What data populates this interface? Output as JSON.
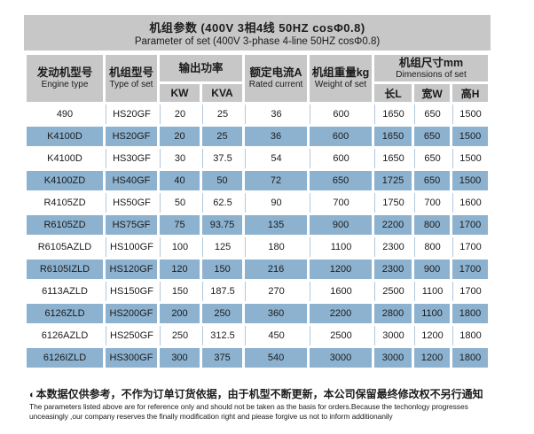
{
  "title": {
    "zh": "机组参数 (400V 3相4线 50HZ cosΦ0.8)",
    "en": "Parameter of set (400V 3-phase 4-line 50HZ cosΦ0.8)"
  },
  "colors": {
    "header_bg": "#c7c7c7",
    "row_blue": "#8cb2d0",
    "divider_blue": "#b0c8dc"
  },
  "table": {
    "header": {
      "engine": {
        "zh": "发动机型号",
        "en": "Engine type"
      },
      "set_type": {
        "zh": "机组型号",
        "en": "Type of set"
      },
      "output_power": {
        "zh": "输出功率",
        "kw": "KW",
        "kva": "KVA"
      },
      "rated_current": {
        "zh": "额定电流A",
        "en": "Rated current"
      },
      "weight": {
        "zh": "机组重量kg",
        "en": "Weight of set"
      },
      "dimensions": {
        "zh": "机组尺寸mm",
        "en": "Dimensions of set",
        "l": "长L",
        "w": "宽W",
        "h": "高H"
      }
    },
    "rows": [
      [
        "490",
        "HS20GF",
        "20",
        "25",
        "36",
        "600",
        "1650",
        "650",
        "1500"
      ],
      [
        "K4100D",
        "HS20GF",
        "20",
        "25",
        "36",
        "600",
        "1650",
        "650",
        "1500"
      ],
      [
        "K4100D",
        "HS30GF",
        "30",
        "37.5",
        "54",
        "600",
        "1650",
        "650",
        "1500"
      ],
      [
        "K4100ZD",
        "HS40GF",
        "40",
        "50",
        "72",
        "650",
        "1725",
        "650",
        "1500"
      ],
      [
        "R4105ZD",
        "HS50GF",
        "50",
        "62.5",
        "90",
        "700",
        "1750",
        "700",
        "1600"
      ],
      [
        "R6105ZD",
        "HS75GF",
        "75",
        "93.75",
        "135",
        "900",
        "2200",
        "800",
        "1700"
      ],
      [
        "R6105AZLD",
        "HS100GF",
        "100",
        "125",
        "180",
        "1100",
        "2300",
        "800",
        "1700"
      ],
      [
        "R6105IZLD",
        "HS120GF",
        "120",
        "150",
        "216",
        "1200",
        "2300",
        "900",
        "1700"
      ],
      [
        "6113AZLD",
        "HS150GF",
        "150",
        "187.5",
        "270",
        "1600",
        "2500",
        "1100",
        "1700"
      ],
      [
        "6126ZLD",
        "HS200GF",
        "200",
        "250",
        "360",
        "2200",
        "2800",
        "1100",
        "1800"
      ],
      [
        "6126AZLD",
        "HS250GF",
        "250",
        "312.5",
        "450",
        "2500",
        "3000",
        "1200",
        "1800"
      ],
      [
        "6126IZLD",
        "HS300GF",
        "300",
        "375",
        "540",
        "3000",
        "3000",
        "1200",
        "1800"
      ]
    ]
  },
  "footer": {
    "bullet": "◐",
    "zh": "本数据仅供参考，不作为订单订货依据，由于机型不断更新，本公司保留最终修改权不另行通知",
    "en_line1": "The parameters listed above are for reference only and should not be taken as the basis for orders.Because the techonlogy progresses",
    "en_line2": "unceasingly ,our company reserves the finally modification right and piease forgive us not to  inform additionanily"
  }
}
